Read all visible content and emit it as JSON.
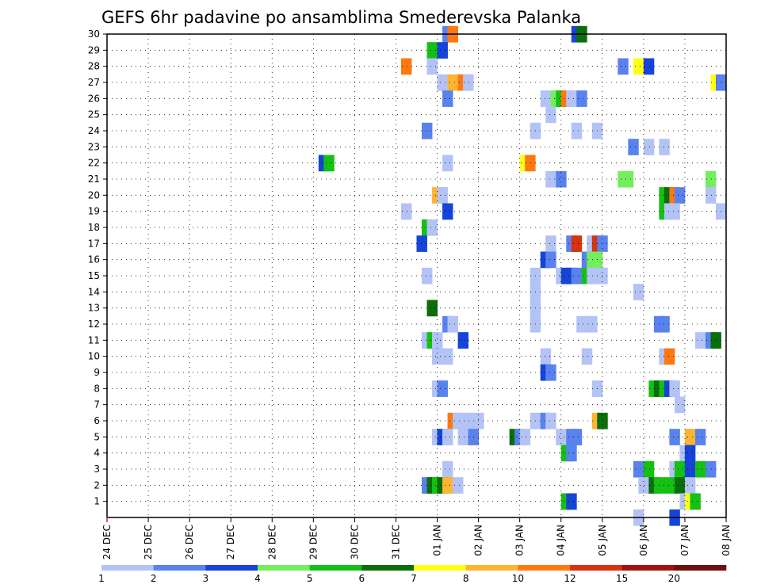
{
  "chart_data": {
    "type": "heatmap",
    "title": "GEFS 6hr padavine po ansamblima Smederevska Palanka",
    "x_tick_labels": [
      "24 DEC",
      "25 DEC",
      "26 DEC",
      "27 DEC",
      "28 DEC",
      "29 DEC",
      "30 DEC",
      "31 DEC",
      "01 JAN",
      "02 JAN",
      "03 JAN",
      "04 JAN",
      "05 JAN",
      "06 JAN",
      "07 JAN",
      "08 JAN"
    ],
    "y_tick_labels": [
      "1",
      "2",
      "3",
      "4",
      "5",
      "6",
      "7",
      "8",
      "9",
      "10",
      "11",
      "12",
      "13",
      "14",
      "15",
      "16",
      "17",
      "18",
      "19",
      "20",
      "21",
      "22",
      "23",
      "24",
      "25",
      "26",
      "27",
      "28",
      "29",
      "30"
    ],
    "steps_per_day": 4,
    "y_range": [
      0,
      30
    ],
    "grid": true,
    "legend": {
      "placement": "bottom",
      "labels": [
        "1",
        "2",
        "3",
        "4",
        "5",
        "6",
        "7",
        "8",
        "10",
        "12",
        "15",
        "20"
      ],
      "colors": [
        "#b4c3f5",
        "#5a82ee",
        "#1644d8",
        "#74ee5e",
        "#14c014",
        "#0a6e0a",
        "#ffff14",
        "#ffb432",
        "#ff780f",
        "#d8320f",
        "#a0140f",
        "#6e0f0f"
      ]
    },
    "cells": [
      {
        "x": 32.5,
        "y": 30,
        "level": 2
      },
      {
        "x": 33,
        "y": 30,
        "level": 9
      },
      {
        "x": 45,
        "y": 30,
        "level": 3
      },
      {
        "x": 45.5,
        "y": 30,
        "level": 6
      },
      {
        "x": 31,
        "y": 29,
        "level": 5
      },
      {
        "x": 32,
        "y": 29,
        "level": 3
      },
      {
        "x": 28.5,
        "y": 28,
        "level": 9
      },
      {
        "x": 31,
        "y": 28,
        "level": 1
      },
      {
        "x": 49.5,
        "y": 28,
        "level": 2
      },
      {
        "x": 51,
        "y": 28,
        "level": 7
      },
      {
        "x": 52,
        "y": 28,
        "level": 3
      },
      {
        "x": 32,
        "y": 27,
        "level": 1
      },
      {
        "x": 33,
        "y": 27,
        "level": 8
      },
      {
        "x": 34,
        "y": 27,
        "level": 9
      },
      {
        "x": 34.5,
        "y": 27,
        "level": 1
      },
      {
        "x": 58.5,
        "y": 27,
        "level": 7
      },
      {
        "x": 59,
        "y": 27,
        "level": 2
      },
      {
        "x": 32.5,
        "y": 26,
        "level": 2
      },
      {
        "x": 42,
        "y": 26,
        "level": 1
      },
      {
        "x": 43,
        "y": 26,
        "level": 4
      },
      {
        "x": 43.5,
        "y": 26,
        "level": 5
      },
      {
        "x": 44,
        "y": 26,
        "level": 9
      },
      {
        "x": 44.5,
        "y": 26,
        "level": 1
      },
      {
        "x": 45.5,
        "y": 26,
        "level": 2
      },
      {
        "x": 42.5,
        "y": 25,
        "level": 1
      },
      {
        "x": 30.5,
        "y": 24,
        "level": 2
      },
      {
        "x": 41,
        "y": 24,
        "level": 1
      },
      {
        "x": 45,
        "y": 24,
        "level": 1
      },
      {
        "x": 47,
        "y": 24,
        "level": 1
      },
      {
        "x": 50.5,
        "y": 23,
        "level": 2
      },
      {
        "x": 52,
        "y": 23,
        "level": 1
      },
      {
        "x": 53.5,
        "y": 23,
        "level": 1
      },
      {
        "x": 20.5,
        "y": 22,
        "level": 3
      },
      {
        "x": 21,
        "y": 22,
        "level": 5
      },
      {
        "x": 32.5,
        "y": 22,
        "level": 1
      },
      {
        "x": 40,
        "y": 22,
        "level": 7
      },
      {
        "x": 40.5,
        "y": 22,
        "level": 9
      },
      {
        "x": 42.5,
        "y": 21,
        "level": 1
      },
      {
        "x": 43.5,
        "y": 21,
        "level": 2
      },
      {
        "x": 49.5,
        "y": 21,
        "level": 4
      },
      {
        "x": 50,
        "y": 21,
        "level": 4
      },
      {
        "x": 58,
        "y": 21,
        "level": 4
      },
      {
        "x": 31.5,
        "y": 20,
        "level": 8
      },
      {
        "x": 32,
        "y": 20,
        "level": 1
      },
      {
        "x": 53.5,
        "y": 20,
        "level": 5
      },
      {
        "x": 54,
        "y": 20,
        "level": 6
      },
      {
        "x": 54.5,
        "y": 20,
        "level": 9
      },
      {
        "x": 55,
        "y": 20,
        "level": 2
      },
      {
        "x": 58,
        "y": 20,
        "level": 1
      },
      {
        "x": 28.5,
        "y": 19,
        "level": 1
      },
      {
        "x": 32.5,
        "y": 19,
        "level": 3
      },
      {
        "x": 53.5,
        "y": 19,
        "level": 5
      },
      {
        "x": 54,
        "y": 19,
        "level": 1
      },
      {
        "x": 54.5,
        "y": 19,
        "level": 1
      },
      {
        "x": 59,
        "y": 19,
        "level": 1
      },
      {
        "x": 30.5,
        "y": 18,
        "level": 5
      },
      {
        "x": 31,
        "y": 18,
        "level": 1
      },
      {
        "x": 30,
        "y": 17,
        "level": 3
      },
      {
        "x": 42.5,
        "y": 17,
        "level": 1
      },
      {
        "x": 44.5,
        "y": 17,
        "level": 2
      },
      {
        "x": 45,
        "y": 17,
        "level": 10
      },
      {
        "x": 46.5,
        "y": 17,
        "level": 1
      },
      {
        "x": 47,
        "y": 17,
        "level": 10
      },
      {
        "x": 47.5,
        "y": 17,
        "level": 2
      },
      {
        "x": 42,
        "y": 16,
        "level": 3
      },
      {
        "x": 42.5,
        "y": 16,
        "level": 2
      },
      {
        "x": 46,
        "y": 16,
        "level": 2
      },
      {
        "x": 46.5,
        "y": 16,
        "level": 4
      },
      {
        "x": 47,
        "y": 16,
        "level": 4
      },
      {
        "x": 30.5,
        "y": 15,
        "level": 1
      },
      {
        "x": 41,
        "y": 15,
        "level": 1
      },
      {
        "x": 43.5,
        "y": 15,
        "level": 1
      },
      {
        "x": 44,
        "y": 15,
        "level": 3
      },
      {
        "x": 44.5,
        "y": 15,
        "level": 3
      },
      {
        "x": 45,
        "y": 15,
        "level": 2
      },
      {
        "x": 46,
        "y": 15,
        "level": 5
      },
      {
        "x": 46.5,
        "y": 15,
        "level": 1
      },
      {
        "x": 47.5,
        "y": 15,
        "level": 1
      },
      {
        "x": 41,
        "y": 14,
        "level": 1
      },
      {
        "x": 51,
        "y": 14,
        "level": 1
      },
      {
        "x": 31,
        "y": 13,
        "level": 6
      },
      {
        "x": 41,
        "y": 13,
        "level": 1
      },
      {
        "x": 32.5,
        "y": 12,
        "level": 2
      },
      {
        "x": 33,
        "y": 12,
        "level": 1
      },
      {
        "x": 41,
        "y": 12,
        "level": 1
      },
      {
        "x": 45.5,
        "y": 12,
        "level": 1
      },
      {
        "x": 46,
        "y": 12,
        "level": 1
      },
      {
        "x": 46.5,
        "y": 12,
        "level": 1
      },
      {
        "x": 53,
        "y": 12,
        "level": 2
      },
      {
        "x": 53.5,
        "y": 12,
        "level": 2
      },
      {
        "x": 30.5,
        "y": 11,
        "level": 1
      },
      {
        "x": 31,
        "y": 11,
        "level": 5
      },
      {
        "x": 31.5,
        "y": 11,
        "level": 1
      },
      {
        "x": 34,
        "y": 11,
        "level": 3
      },
      {
        "x": 57,
        "y": 11,
        "level": 1
      },
      {
        "x": 58,
        "y": 11,
        "level": 2
      },
      {
        "x": 58.5,
        "y": 11,
        "level": 6
      },
      {
        "x": 31.5,
        "y": 10,
        "level": 1
      },
      {
        "x": 32.5,
        "y": 10,
        "level": 1
      },
      {
        "x": 42,
        "y": 10,
        "level": 1
      },
      {
        "x": 46,
        "y": 10,
        "level": 1
      },
      {
        "x": 53.5,
        "y": 10,
        "level": 1
      },
      {
        "x": 54,
        "y": 10,
        "level": 9
      },
      {
        "x": 42,
        "y": 9,
        "level": 3
      },
      {
        "x": 42.5,
        "y": 9,
        "level": 2
      },
      {
        "x": 31.5,
        "y": 8,
        "level": 1
      },
      {
        "x": 32,
        "y": 8,
        "level": 2
      },
      {
        "x": 47,
        "y": 8,
        "level": 1
      },
      {
        "x": 52.5,
        "y": 8,
        "level": 5
      },
      {
        "x": 53,
        "y": 8,
        "level": 6
      },
      {
        "x": 53.5,
        "y": 8,
        "level": 5
      },
      {
        "x": 54,
        "y": 8,
        "level": 3
      },
      {
        "x": 54.5,
        "y": 8,
        "level": 1
      },
      {
        "x": 55,
        "y": 7,
        "level": 1
      },
      {
        "x": 33,
        "y": 6,
        "level": 9
      },
      {
        "x": 33.5,
        "y": 6,
        "level": 1
      },
      {
        "x": 34.5,
        "y": 6,
        "level": 1
      },
      {
        "x": 35.5,
        "y": 6,
        "level": 1
      },
      {
        "x": 41,
        "y": 6,
        "level": 1
      },
      {
        "x": 42,
        "y": 6,
        "level": 2
      },
      {
        "x": 42.5,
        "y": 6,
        "level": 1
      },
      {
        "x": 47,
        "y": 6,
        "level": 8
      },
      {
        "x": 47.5,
        "y": 6,
        "level": 6
      },
      {
        "x": 31.5,
        "y": 5,
        "level": 1
      },
      {
        "x": 32,
        "y": 5,
        "level": 3
      },
      {
        "x": 32.5,
        "y": 5,
        "level": 1
      },
      {
        "x": 34,
        "y": 5,
        "level": 1
      },
      {
        "x": 35,
        "y": 5,
        "level": 2
      },
      {
        "x": 39,
        "y": 5,
        "level": 6
      },
      {
        "x": 39.5,
        "y": 5,
        "level": 2
      },
      {
        "x": 40,
        "y": 5,
        "level": 1
      },
      {
        "x": 43.5,
        "y": 5,
        "level": 1
      },
      {
        "x": 44.5,
        "y": 5,
        "level": 2
      },
      {
        "x": 45,
        "y": 5,
        "level": 2
      },
      {
        "x": 54.5,
        "y": 5,
        "level": 2
      },
      {
        "x": 56,
        "y": 5,
        "level": 8
      },
      {
        "x": 57,
        "y": 5,
        "level": 2
      },
      {
        "x": 44,
        "y": 4,
        "level": 5
      },
      {
        "x": 44.5,
        "y": 4,
        "level": 2
      },
      {
        "x": 55.5,
        "y": 4,
        "level": 1
      },
      {
        "x": 56,
        "y": 4,
        "level": 3
      },
      {
        "x": 32.5,
        "y": 3,
        "level": 1
      },
      {
        "x": 51,
        "y": 3,
        "level": 2
      },
      {
        "x": 52,
        "y": 3,
        "level": 5
      },
      {
        "x": 54.5,
        "y": 3,
        "level": 1
      },
      {
        "x": 55,
        "y": 3,
        "level": 5
      },
      {
        "x": 56,
        "y": 3,
        "level": 3
      },
      {
        "x": 57,
        "y": 3,
        "level": 5
      },
      {
        "x": 58,
        "y": 3,
        "level": 2
      },
      {
        "x": 30.5,
        "y": 2,
        "level": 2
      },
      {
        "x": 31,
        "y": 2,
        "level": 6
      },
      {
        "x": 31.5,
        "y": 2,
        "level": 5
      },
      {
        "x": 32,
        "y": 2,
        "level": 6
      },
      {
        "x": 32.5,
        "y": 2,
        "level": 8
      },
      {
        "x": 33.5,
        "y": 2,
        "level": 1
      },
      {
        "x": 51.5,
        "y": 2,
        "level": 1
      },
      {
        "x": 52.5,
        "y": 2,
        "level": 6
      },
      {
        "x": 53,
        "y": 2,
        "level": 5
      },
      {
        "x": 54,
        "y": 2,
        "level": 5
      },
      {
        "x": 55,
        "y": 2,
        "level": 6
      },
      {
        "x": 56,
        "y": 2,
        "level": 1
      },
      {
        "x": 44,
        "y": 1,
        "level": 5
      },
      {
        "x": 44.5,
        "y": 1,
        "level": 3
      },
      {
        "x": 55.5,
        "y": 1,
        "level": 1
      },
      {
        "x": 56,
        "y": 1,
        "level": 7
      },
      {
        "x": 56.5,
        "y": 1,
        "level": 5
      },
      {
        "x": 51,
        "y": 0,
        "level": 1
      },
      {
        "x": 54.5,
        "y": 0,
        "level": 3
      }
    ]
  }
}
